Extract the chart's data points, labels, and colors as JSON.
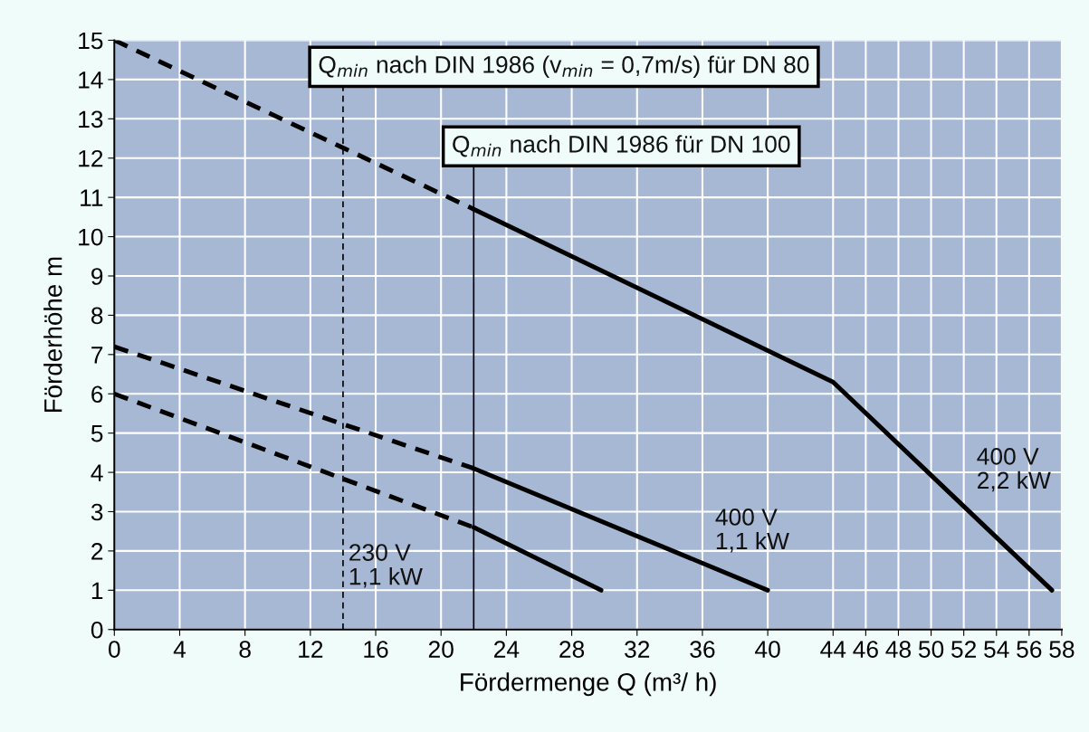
{
  "chart_data": {
    "type": "line",
    "xlabel": "Fördermenge Q (m³/ h)",
    "ylabel": "Förderhöhe m",
    "series": [
      {
        "color": "#000000",
        "line_style": "dashed",
        "x": [
          0,
          22
        ],
        "values": [
          15,
          10.7
        ]
      },
      {
        "color": "#000000",
        "line_style": "solid",
        "x": [
          22,
          44,
          57.4
        ],
        "values": [
          10.7,
          6.3,
          1
        ]
      },
      {
        "color": "#000000",
        "line_style": "dashed",
        "x": [
          0,
          22
        ],
        "values": [
          7.2,
          4.1
        ]
      },
      {
        "color": "#000000",
        "line_style": "solid",
        "x": [
          22,
          40
        ],
        "values": [
          4.1,
          1
        ]
      },
      {
        "color": "#000000",
        "line_style": "dashed",
        "x": [
          0,
          22
        ],
        "values": [
          6.0,
          2.6
        ]
      },
      {
        "color": "#000000",
        "line_style": "solid",
        "x": [
          22,
          29.8
        ],
        "values": [
          2.6,
          1
        ]
      }
    ],
    "ref_lines": [
      {
        "axis": "x",
        "value": 14,
        "line_style": "dashed",
        "color": "#000000"
      },
      {
        "axis": "x",
        "value": 22,
        "line_style": "solid",
        "color": "#000000"
      }
    ],
    "annotations": [
      "Q$_{min}$ nach DIN 1986 (v$_{min}$ = 0,7m/s) für DN 80",
      "Q$_{min}$ nach DIN 1986 für DN 100",
      "230 V\n1,1 kW",
      "400 V\n1,1 kW",
      "400 V\n2,2 kW"
    ],
    "xlim": [
      0,
      58
    ],
    "xticks": [
      0,
      4,
      8,
      12,
      16,
      20,
      24,
      28,
      32,
      36,
      40,
      44,
      46,
      48,
      50,
      52,
      54,
      56,
      58
    ],
    "ylim": [
      0,
      15
    ],
    "yticks": [
      0,
      1,
      2,
      3,
      4,
      5,
      6,
      7,
      8,
      9,
      10,
      11,
      12,
      13,
      14,
      15
    ],
    "grid": true,
    "legend": false,
    "marker": "none"
  }
}
